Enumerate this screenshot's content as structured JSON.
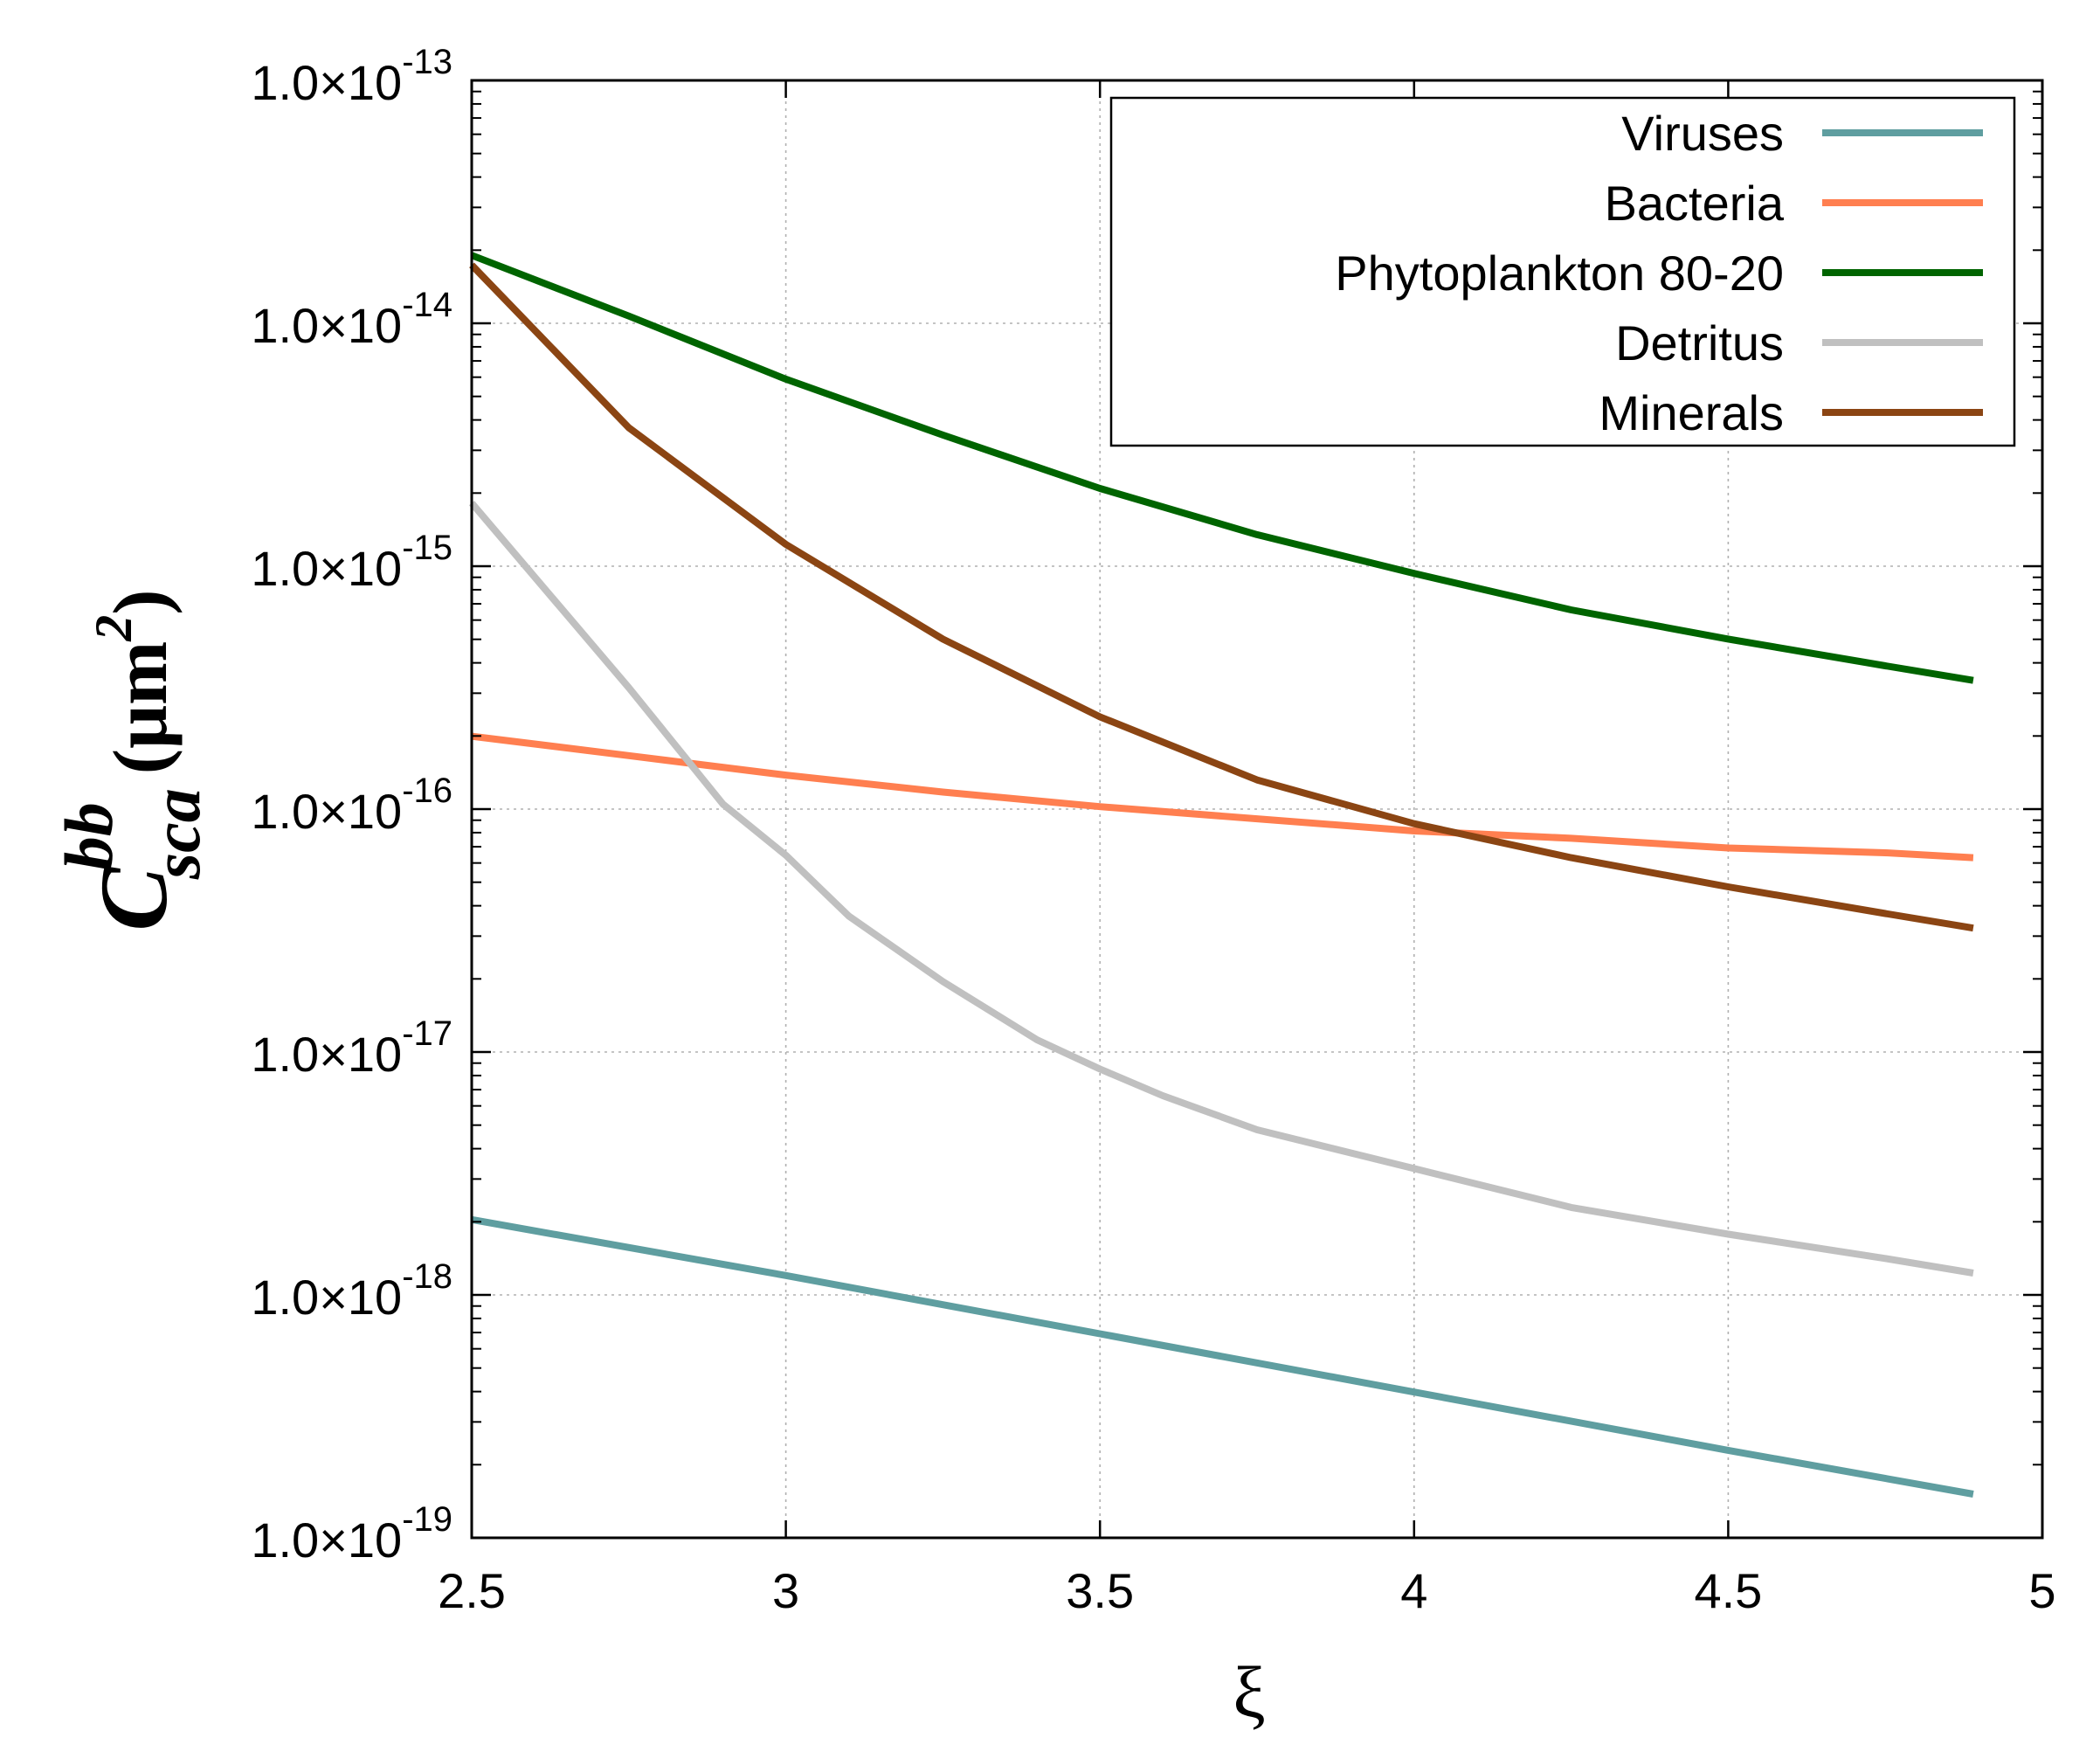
{
  "chart_data": {
    "type": "line",
    "title": "",
    "xlabel": "ξ",
    "ylabel": {
      "symbol": "C",
      "superscript": "bb",
      "subscript": "sca",
      "units": "(μm",
      "units_exp": "2",
      "units_close": ")"
    },
    "xlim": [
      2.5,
      5
    ],
    "ylim_log10": [
      -19,
      -13
    ],
    "yscale": "log",
    "grid": true,
    "legend_position": "top-right",
    "x_ticks": [
      {
        "value": 2.5,
        "label": "2.5"
      },
      {
        "value": 3,
        "label": "3"
      },
      {
        "value": 3.5,
        "label": "3.5"
      },
      {
        "value": 4,
        "label": "4"
      },
      {
        "value": 4.5,
        "label": "4.5"
      },
      {
        "value": 5,
        "label": "5"
      }
    ],
    "y_ticks": [
      {
        "exp": -13,
        "mantissa": "1.0×10",
        "power": "-13"
      },
      {
        "exp": -14,
        "mantissa": "1.0×10",
        "power": "-14"
      },
      {
        "exp": -15,
        "mantissa": "1.0×10",
        "power": "-15"
      },
      {
        "exp": -16,
        "mantissa": "1.0×10",
        "power": "-16"
      },
      {
        "exp": -17,
        "mantissa": "1.0×10",
        "power": "-17"
      },
      {
        "exp": -18,
        "mantissa": "1.0×10",
        "power": "-18"
      },
      {
        "exp": -19,
        "mantissa": "1.0×10",
        "power": "-19"
      }
    ],
    "series": [
      {
        "name": "Viruses",
        "color": "#5f9ea0",
        "x": [
          2.5,
          3.0,
          3.5,
          4.0,
          4.5,
          4.89
        ],
        "y_log10": [
          -17.69,
          -17.92,
          -18.16,
          -18.4,
          -18.64,
          -18.82
        ]
      },
      {
        "name": "Bacteria",
        "color": "#ff7f50",
        "x": [
          2.5,
          2.75,
          3.0,
          3.25,
          3.5,
          3.75,
          4.0,
          4.25,
          4.5,
          4.75,
          4.89
        ],
        "y_log10": [
          -15.7,
          -15.78,
          -15.86,
          -15.93,
          -15.99,
          -16.04,
          -16.09,
          -16.12,
          -16.16,
          -16.18,
          -16.2
        ]
      },
      {
        "name": "Phytoplankton 80-20",
        "color": "#006400",
        "x": [
          2.5,
          2.75,
          3.0,
          3.25,
          3.5,
          3.75,
          4.0,
          4.25,
          4.5,
          4.75,
          4.89
        ],
        "y_log10": [
          -13.72,
          -13.97,
          -14.23,
          -14.46,
          -14.68,
          -14.87,
          -15.03,
          -15.18,
          -15.3,
          -15.41,
          -15.47
        ]
      },
      {
        "name": "Detritus",
        "color": "#c0c0c0",
        "x": [
          2.5,
          2.75,
          2.9,
          3.0,
          3.1,
          3.25,
          3.4,
          3.5,
          3.6,
          3.75,
          4.0,
          4.25,
          4.5,
          4.75,
          4.89
        ],
        "y_log10": [
          -14.74,
          -15.5,
          -15.98,
          -16.19,
          -16.44,
          -16.71,
          -16.95,
          -17.07,
          -17.18,
          -17.32,
          -17.48,
          -17.64,
          -17.75,
          -17.85,
          -17.91
        ]
      },
      {
        "name": "Minerals",
        "color": "#8b4513",
        "x": [
          2.5,
          2.75,
          3.0,
          3.25,
          3.5,
          3.75,
          4.0,
          4.25,
          4.5,
          4.75,
          4.89
        ],
        "y_log10": [
          -13.76,
          -14.43,
          -14.91,
          -15.3,
          -15.62,
          -15.88,
          -16.06,
          -16.2,
          -16.32,
          -16.43,
          -16.49
        ]
      }
    ]
  }
}
